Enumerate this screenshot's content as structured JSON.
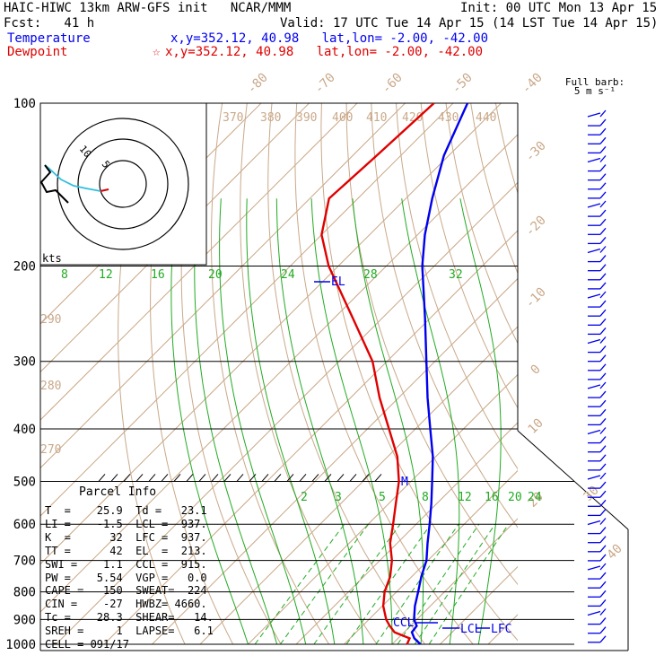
{
  "header": {
    "model": "HAIC-HIWC 13km ARW-GFS init   NCAR/MMM",
    "init": "Init: 00 UTC Mon 13 Apr 15",
    "fcst": "Fcst:   41 h",
    "valid": "Valid: 17 UTC Tue 14 Apr 15 (14 LST Tue 14 Apr 15)",
    "temperature_label": "Temperature",
    "temperature_loc": "x,y=352.12, 40.98   lat,lon= -2.00, -42.00",
    "dewpoint_label": "Dewpoint",
    "dewpoint_marker": "☆",
    "dewpoint_loc": "x,y=352.12, 40.98   lat,lon= -2.00, -42.00"
  },
  "hodograph": {
    "units_label": "kts",
    "ring_labels": [
      "5",
      "10"
    ]
  },
  "barb_legend": {
    "line1": "Full barb:",
    "line2": "5 m s⁻¹"
  },
  "parcel_info": {
    "title": "Parcel Info",
    "rows": [
      "T  =    25.9  Td =   23.1",
      "LI =    -1.5  LCL =  937.",
      "K  =      32  LFC =  937.",
      "TT =      42  EL  =  213.",
      "SWI =    1.1  CCL =  915.",
      "PW =    5.54  VGP =   0.0",
      "CAPE =   150  SWEAT=  224",
      "CIN =    -27  HWBZ= 4660.",
      "Tc =    28.3  SHEAR=   14.",
      "SREH =     1  LAPSE=   6.1",
      "CELL = 091/17"
    ]
  },
  "chart_data": {
    "type": "line",
    "title": "Skew-T log-P sounding",
    "yaxis": "pressure (hPa)",
    "pressure_labels": [
      "100",
      "200",
      "300",
      "400",
      "500",
      "600",
      "700",
      "800",
      "900",
      "1000"
    ],
    "isotherm_labels": [
      "-80",
      "-70",
      "-60",
      "-50",
      "-40",
      "-30",
      "-20",
      "-10",
      "0",
      "10",
      "20",
      "30",
      "40"
    ],
    "theta_labels": [
      "370",
      "380",
      "390",
      "400",
      "410",
      "420",
      "430",
      "440",
      "290",
      "280",
      "270"
    ],
    "mixing_ratio_upper_labels": [
      "8",
      "12",
      "16",
      "20",
      "24",
      "28",
      "32"
    ],
    "mixing_ratio_lower_labels": [
      "2",
      "3",
      "5",
      "8",
      "12",
      "16",
      "20",
      "24"
    ],
    "level_labels": {
      "el": "EL",
      "ccl": "CCL",
      "lcl": "LCL",
      "lfc": "LFC",
      "m": "M"
    },
    "series": [
      {
        "name": "Temperature",
        "color": "#0000ee",
        "pressure": [
          1000,
          975,
          950,
          925,
          900,
          850,
          800,
          750,
          700,
          650,
          600,
          550,
          500,
          450,
          400,
          350,
          300,
          250,
          200,
          175,
          150,
          125,
          100
        ],
        "temperature": [
          25.9,
          23.4,
          21.6,
          21.3,
          19.4,
          16.8,
          14.5,
          12.0,
          9.7,
          6.3,
          2.8,
          -1.1,
          -5.6,
          -10.6,
          -16.9,
          -24.0,
          -31.8,
          -41.0,
          -52.5,
          -58.5,
          -64.5,
          -71.0,
          -77.0
        ]
      },
      {
        "name": "Dewpoint",
        "color": "#e00000",
        "pressure": [
          1000,
          975,
          950,
          925,
          900,
          850,
          800,
          750,
          700,
          650,
          600,
          550,
          500,
          450,
          400,
          350,
          300,
          250,
          200,
          175,
          150,
          125,
          100
        ],
        "temperature": [
          23.1,
          22.4,
          18.0,
          15.7,
          13.6,
          10.2,
          7.5,
          5.5,
          2.5,
          -1.5,
          -4.8,
          -8.5,
          -12.5,
          -18.0,
          -25.5,
          -34.0,
          -43.0,
          -56.0,
          -72.0,
          -80.0,
          -86.0,
          -85.0,
          -84.0
        ]
      }
    ]
  }
}
